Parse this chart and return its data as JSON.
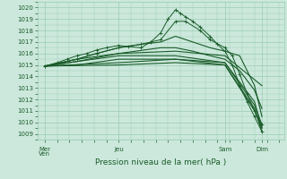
{
  "xlabel": "Pression niveau de la mer( hPa )",
  "ylim": [
    1008.5,
    1020.5
  ],
  "yticks": [
    1009,
    1010,
    1011,
    1012,
    1013,
    1014,
    1015,
    1016,
    1017,
    1018,
    1019,
    1020
  ],
  "xtick_labels": [
    "Mer\nVen",
    "Jeu",
    "Sam",
    "Dim"
  ],
  "xtick_positions": [
    0.03,
    0.33,
    0.76,
    0.91
  ],
  "bg_color": "#cce8dc",
  "grid_color": "#99ccb3",
  "line_color": "#1a5c2a",
  "figsize": [
    3.2,
    2.0
  ],
  "dpi": 100,
  "lines": [
    {
      "x": [
        0.03,
        0.08,
        0.12,
        0.16,
        0.2,
        0.24,
        0.28,
        0.33,
        0.37,
        0.42,
        0.46,
        0.5,
        0.53,
        0.56,
        0.58,
        0.6,
        0.63,
        0.66,
        0.7,
        0.73,
        0.76,
        0.79,
        0.82,
        0.85,
        0.88,
        0.91
      ],
      "y": [
        1014.9,
        1015.2,
        1015.5,
        1015.8,
        1016.0,
        1016.3,
        1016.5,
        1016.7,
        1016.6,
        1016.5,
        1017.0,
        1017.8,
        1019.0,
        1019.8,
        1019.5,
        1019.2,
        1018.8,
        1018.3,
        1017.5,
        1016.8,
        1016.2,
        1015.0,
        1013.2,
        1011.8,
        1010.5,
        1009.2
      ],
      "marker": true
    },
    {
      "x": [
        0.03,
        0.08,
        0.16,
        0.24,
        0.33,
        0.42,
        0.5,
        0.56,
        0.6,
        0.66,
        0.7,
        0.76,
        0.79,
        0.82,
        0.85,
        0.88,
        0.91
      ],
      "y": [
        1014.9,
        1015.1,
        1015.5,
        1016.0,
        1016.5,
        1016.8,
        1017.2,
        1018.8,
        1018.8,
        1018.0,
        1017.2,
        1016.5,
        1015.8,
        1014.2,
        1012.5,
        1011.0,
        1009.8
      ],
      "marker": true
    },
    {
      "x": [
        0.03,
        0.16,
        0.24,
        0.33,
        0.42,
        0.5,
        0.56,
        0.63,
        0.7,
        0.76,
        0.82,
        0.88,
        0.91
      ],
      "y": [
        1014.9,
        1015.5,
        1016.0,
        1016.5,
        1016.8,
        1017.0,
        1017.5,
        1017.0,
        1016.5,
        1016.2,
        1015.8,
        1013.2,
        1010.5
      ],
      "marker": false
    },
    {
      "x": [
        0.03,
        0.16,
        0.33,
        0.5,
        0.56,
        0.63,
        0.7,
        0.76,
        0.82,
        0.88,
        0.91
      ],
      "y": [
        1014.9,
        1015.3,
        1016.0,
        1016.5,
        1016.5,
        1016.2,
        1015.8,
        1015.5,
        1014.5,
        1012.8,
        1011.2
      ],
      "marker": false
    },
    {
      "x": [
        0.03,
        0.16,
        0.33,
        0.56,
        0.76,
        0.91
      ],
      "y": [
        1014.9,
        1015.5,
        1016.0,
        1016.2,
        1015.8,
        1013.2
      ],
      "marker": false
    },
    {
      "x": [
        0.03,
        0.16,
        0.33,
        0.56,
        0.76,
        0.88,
        0.91
      ],
      "y": [
        1014.9,
        1015.3,
        1015.8,
        1015.8,
        1015.2,
        1011.8,
        1009.5
      ],
      "marker": false
    },
    {
      "x": [
        0.03,
        0.16,
        0.33,
        0.56,
        0.76,
        0.88,
        0.91
      ],
      "y": [
        1014.9,
        1015.0,
        1015.5,
        1015.5,
        1015.0,
        1011.2,
        1009.2
      ],
      "marker": false
    },
    {
      "x": [
        0.03,
        0.33,
        0.56,
        0.76,
        0.88,
        0.91
      ],
      "y": [
        1014.9,
        1015.2,
        1015.5,
        1015.2,
        1011.5,
        1009.8
      ],
      "marker": false
    },
    {
      "x": [
        0.03,
        0.33,
        0.56,
        0.76,
        0.88,
        0.91
      ],
      "y": [
        1014.9,
        1015.0,
        1015.2,
        1015.0,
        1011.0,
        1009.5
      ],
      "marker": false
    }
  ]
}
